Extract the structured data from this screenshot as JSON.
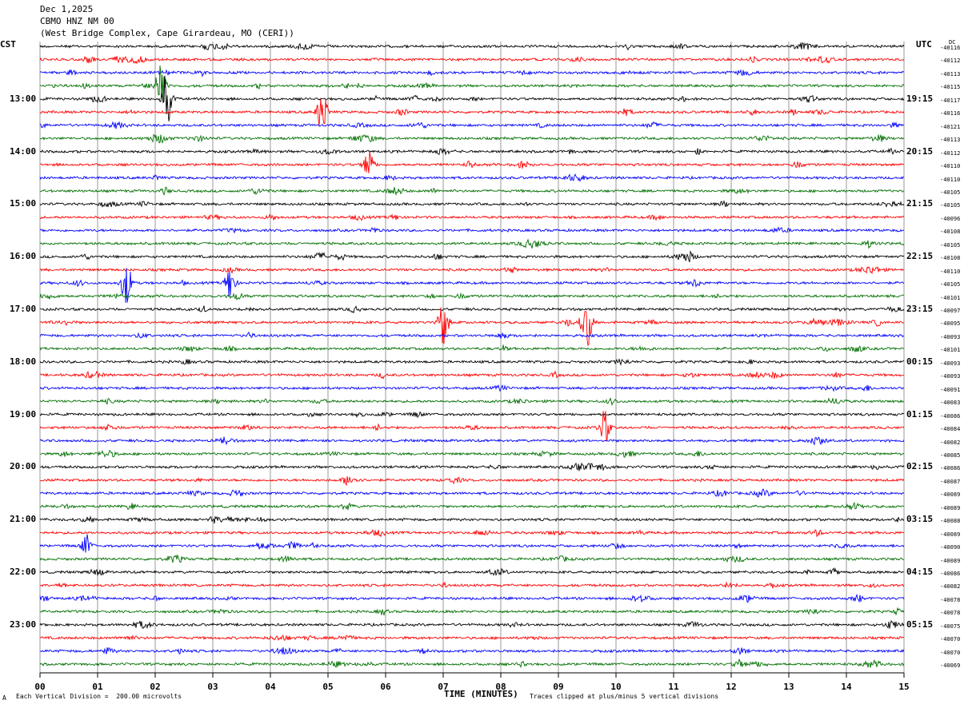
{
  "header": {
    "date": "Dec 1,2025",
    "station": "CBMO HNZ NM 00",
    "location": "(West Bridge Complex, Cape Girardeau, MO (CERI))"
  },
  "left_timezone": "CST",
  "right_timezone": "UTC",
  "dc_label": "DC",
  "xaxis_title": "TIME (MINUTES)",
  "footer_left": "Each Vertical Division =  200.00 microvolts",
  "footer_right": "Traces clipped at plus/minus 5 vertical divisions",
  "footer_mark": "A",
  "colors": {
    "trace_cycle": [
      "#000000",
      "#ff0000",
      "#0000ff",
      "#007000"
    ],
    "grid": "#808080"
  },
  "chart_data": {
    "type": "line",
    "xlabel": "TIME (MINUTES)",
    "xlim": [
      0,
      15
    ],
    "x_ticks": [
      "00",
      "01",
      "02",
      "03",
      "04",
      "05",
      "06",
      "07",
      "08",
      "09",
      "10",
      "11",
      "12",
      "13",
      "14",
      "15"
    ],
    "grid": true,
    "trace_count": 48,
    "trace_minutes": 15,
    "left_hour_labels": [
      {
        "trace": 4,
        "label": "13:00"
      },
      {
        "trace": 8,
        "label": "14:00"
      },
      {
        "trace": 12,
        "label": "15:00"
      },
      {
        "trace": 16,
        "label": "16:00"
      },
      {
        "trace": 20,
        "label": "17:00"
      },
      {
        "trace": 24,
        "label": "18:00"
      },
      {
        "trace": 28,
        "label": "19:00"
      },
      {
        "trace": 32,
        "label": "20:00"
      },
      {
        "trace": 36,
        "label": "21:00"
      },
      {
        "trace": 40,
        "label": "22:00"
      },
      {
        "trace": 44,
        "label": "23:00"
      }
    ],
    "right_hour_labels": [
      {
        "trace": 4,
        "label": "19:15"
      },
      {
        "trace": 8,
        "label": "20:15"
      },
      {
        "trace": 12,
        "label": "21:15"
      },
      {
        "trace": 16,
        "label": "22:15"
      },
      {
        "trace": 20,
        "label": "23:15"
      },
      {
        "trace": 24,
        "label": "00:15"
      },
      {
        "trace": 28,
        "label": "01:15"
      },
      {
        "trace": 32,
        "label": "02:15"
      },
      {
        "trace": 36,
        "label": "03:15"
      },
      {
        "trace": 40,
        "label": "04:15"
      },
      {
        "trace": 44,
        "label": "05:15"
      }
    ],
    "dc_offsets": [
      "-40116",
      "-40112",
      "-40113",
      "-40115",
      "-40117",
      "-40116",
      "-40121",
      "-40113",
      "-40112",
      "-40110",
      "-40110",
      "-40105",
      "-40105",
      "-40096",
      "-40108",
      "-40105",
      "-40108",
      "-40110",
      "-40105",
      "-40101",
      "-40097",
      "-40095",
      "-40093",
      "-40101",
      "-40093",
      "-40093",
      "-40091",
      "-40083",
      "-40086",
      "-40084",
      "-40082",
      "-40085",
      "-40086",
      "-40087",
      "-40089",
      "-40089",
      "-40088",
      "-40089",
      "-40090",
      "-40089",
      "-40086",
      "-40082",
      "-40078",
      "-40078",
      "-40075",
      "-40070",
      "-40070",
      "-40069"
    ],
    "events": [
      {
        "trace": 3,
        "minute": 2.1,
        "amplitude": 5
      },
      {
        "trace": 4,
        "minute": 2.2,
        "amplitude": 5
      },
      {
        "trace": 5,
        "minute": 4.9,
        "amplitude": 4
      },
      {
        "trace": 9,
        "minute": 5.7,
        "amplitude": 3
      },
      {
        "trace": 18,
        "minute": 1.5,
        "amplitude": 4
      },
      {
        "trace": 18,
        "minute": 3.3,
        "amplitude": 3
      },
      {
        "trace": 21,
        "minute": 7.0,
        "amplitude": 4
      },
      {
        "trace": 21,
        "minute": 9.5,
        "amplitude": 4
      },
      {
        "trace": 29,
        "minute": 9.8,
        "amplitude": 3
      },
      {
        "trace": 38,
        "minute": 0.8,
        "amplitude": 2
      }
    ]
  }
}
